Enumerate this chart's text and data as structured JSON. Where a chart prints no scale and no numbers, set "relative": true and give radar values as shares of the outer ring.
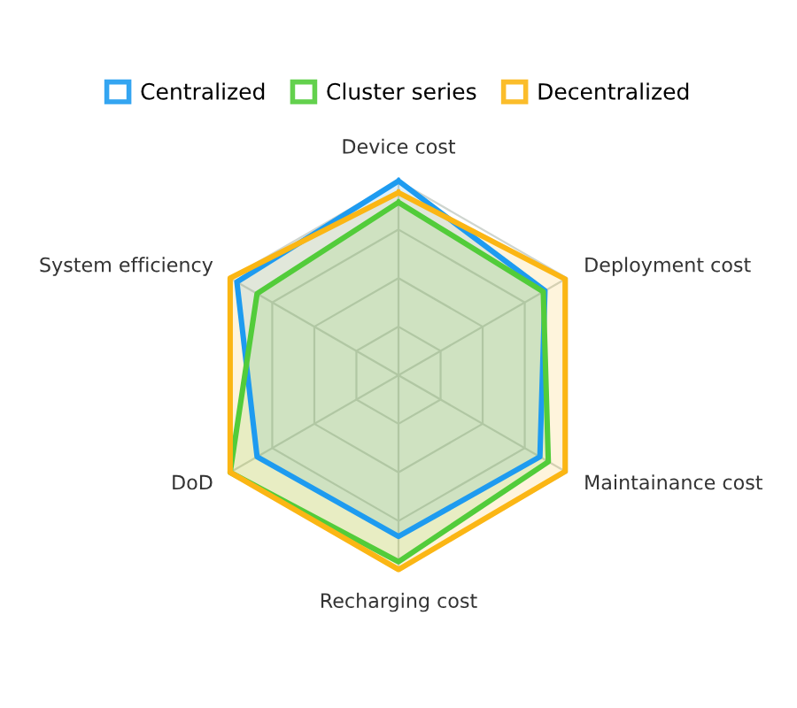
{
  "chart_data": {
    "type": "radar",
    "relative": true,
    "grid": true,
    "legend": "top",
    "categories": [
      "Device cost",
      "Deployment cost",
      "Maintainance cost",
      "Recharging cost",
      "DoD",
      "System efficiency"
    ],
    "series": [
      {
        "name": "Centralized",
        "color": "#1e9bf0",
        "values": [
          1.0,
          0.87,
          0.84,
          0.83,
          0.84,
          0.96
        ]
      },
      {
        "name": "Cluster series",
        "color": "#52cc3a",
        "values": [
          0.89,
          0.86,
          0.89,
          0.96,
          1.0,
          0.84
        ]
      },
      {
        "name": "Decentralized",
        "color": "#fbb614",
        "values": [
          0.94,
          0.99,
          0.99,
          1.0,
          1.0,
          1.0
        ]
      }
    ]
  }
}
